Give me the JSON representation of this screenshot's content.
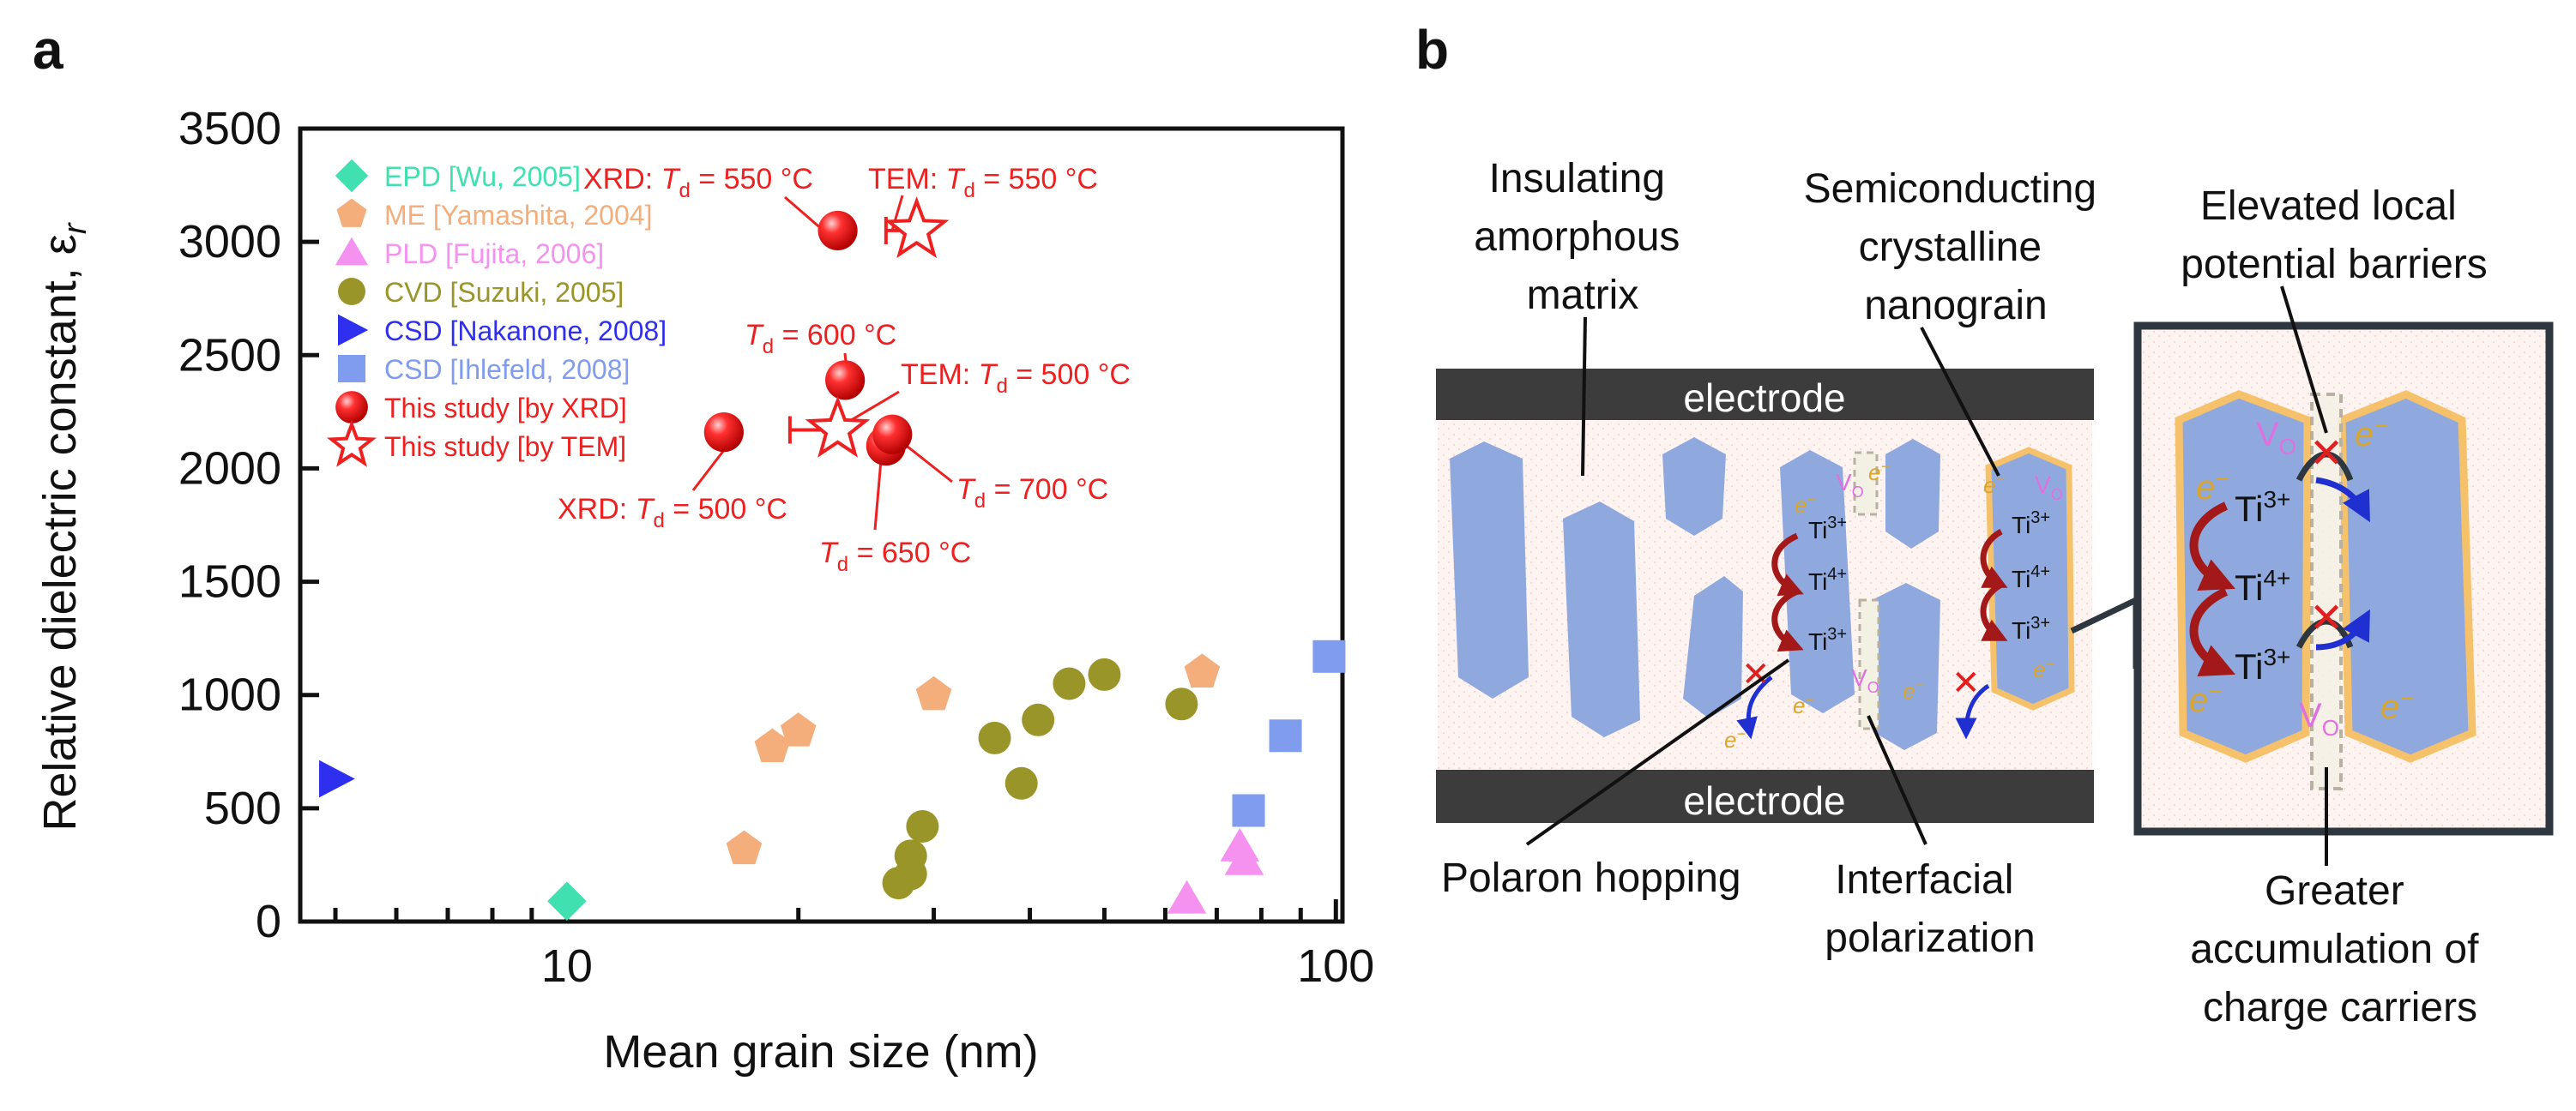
{
  "panel_a": {
    "letter": "a"
  },
  "panel_b": {
    "letter": "b",
    "electrode_top": "electrode",
    "electrode_bottom": "electrode",
    "label_matrix": [
      "Insulating",
      "amorphous",
      "matrix"
    ],
    "label_grain": [
      "Semiconducting",
      "crystalline",
      "nanograin"
    ],
    "label_polaron": "Polaron hopping",
    "label_interfacial": [
      "Interfacial",
      "polarization"
    ],
    "label_barrier": [
      "Elevated local",
      "potential barriers"
    ],
    "label_accum": [
      "Greater",
      "accumulation of",
      "charge carriers"
    ],
    "species": {
      "ti3": "Ti",
      "ti3_sup": "3+",
      "ti4": "Ti",
      "ti4_sup": "4+",
      "electron": "e",
      "electron_sup": "−",
      "vacancy": "V",
      "vacancy_sub": "O",
      "vacancy_sup": "••"
    }
  },
  "colors": {
    "grain_blue": "#8fa9de",
    "grain_outline": "#f5c26b",
    "electrode": "#3c3c3c",
    "matrix": "#fdf1ee",
    "red": "#e02020",
    "hop_arrow": "#a31818",
    "vacancy": "#e070e0",
    "electron": "#d9a52a"
  },
  "chart_data": {
    "type": "scatter",
    "title": "",
    "xlabel": "Mean grain size (nm)",
    "ylabel": "Relative dielectric constant, ε",
    "ylabel_sub": "r",
    "x_scale": "log",
    "xlim": [
      4.5,
      102
    ],
    "ylim": [
      0,
      3500
    ],
    "x_ticks": [
      10,
      100
    ],
    "x_tick_labels": [
      "10",
      "100"
    ],
    "y_ticks": [
      0,
      500,
      1000,
      1500,
      2000,
      2500,
      3000,
      3500
    ],
    "y_tick_labels": [
      "0",
      "500",
      "1000",
      "1500",
      "2000",
      "2500",
      "3000",
      "3500"
    ],
    "legend_position": "top-left",
    "series": [
      {
        "name": "EPD [Wu, 2005]",
        "marker": "diamond",
        "color": "#40e0b0",
        "points": [
          [
            10,
            90
          ]
        ]
      },
      {
        "name": "ME [Yamashita, 2004]",
        "marker": "pentagon",
        "color": "#f4ae7c",
        "points": [
          [
            17,
            320
          ],
          [
            18.5,
            770
          ],
          [
            20,
            840
          ],
          [
            30,
            1000
          ],
          [
            67,
            1100
          ]
        ]
      },
      {
        "name": "PLD [Fujita, 2006]",
        "marker": "triangle",
        "color": "#f592f0",
        "points": [
          [
            64,
            100
          ],
          [
            75,
            330
          ],
          [
            76,
            270
          ]
        ]
      },
      {
        "name": "CVD [Suzuki, 2005]",
        "marker": "circle",
        "color": "#9a9528",
        "points": [
          [
            27,
            170
          ],
          [
            28,
            210
          ],
          [
            28,
            290
          ],
          [
            29,
            420
          ],
          [
            36,
            810
          ],
          [
            39,
            610
          ],
          [
            41,
            890
          ],
          [
            45,
            1050
          ],
          [
            50,
            1090
          ],
          [
            63,
            960
          ]
        ]
      },
      {
        "name": "CSD [Nakanone, 2008]",
        "marker": "triangle-right",
        "color": "#2f2ff0",
        "points": [
          [
            5,
            630
          ]
        ]
      },
      {
        "name": "CSD [Ihlefeld, 2008]",
        "marker": "square",
        "color": "#7f9cee",
        "points": [
          [
            77,
            490
          ],
          [
            86,
            820
          ],
          [
            98,
            1170
          ]
        ]
      },
      {
        "name": "This study [by XRD]",
        "marker": "sphere",
        "color": "#ee2020",
        "points": [
          [
            16,
            2160
          ],
          [
            22.5,
            3050
          ],
          [
            23,
            2390
          ],
          [
            26,
            2100
          ],
          [
            26.5,
            2150
          ]
        ]
      },
      {
        "name": "This study [by TEM]",
        "marker": "star",
        "color": "#ee2020",
        "points": [
          [
            22.5,
            2170
          ],
          [
            28.5,
            3050
          ]
        ]
      }
    ],
    "annotations": [
      {
        "text": "XRD: ",
        "italic": "T",
        "sub": "d",
        "rest": " = 550 °C"
      },
      {
        "text": "TEM: ",
        "italic": "T",
        "sub": "d",
        "rest": " = 550 °C"
      },
      {
        "text": "",
        "italic": "T",
        "sub": "d",
        "rest": " = 600 °C"
      },
      {
        "text": "TEM: ",
        "italic": "T",
        "sub": "d",
        "rest": " = 500 °C"
      },
      {
        "text": "",
        "italic": "T",
        "sub": "d",
        "rest": " = 700 °C"
      },
      {
        "text": "XRD: ",
        "italic": "T",
        "sub": "d",
        "rest": " = 500 °C"
      },
      {
        "text": "",
        "italic": "T",
        "sub": "d",
        "rest": " = 650 °C"
      }
    ]
  }
}
